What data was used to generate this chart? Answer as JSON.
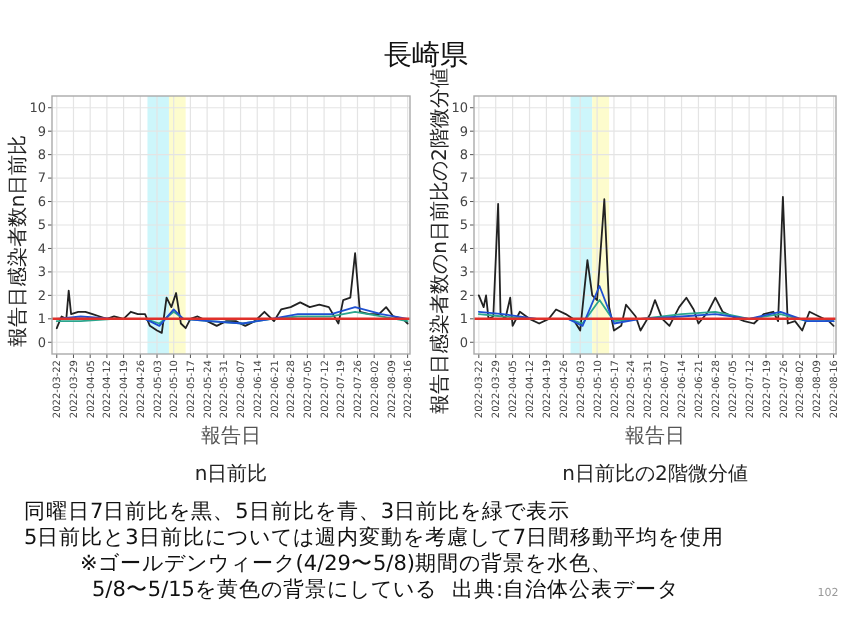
{
  "chart_data": [
    {
      "type": "line",
      "ylabel": "報告日感染者数n日前比",
      "xlabel": "報告日",
      "subtitle": "n日前比",
      "grid": true,
      "xlim": [
        "2022-03-20",
        "2022-08-17"
      ],
      "ylim": [
        -0.5,
        10.5
      ],
      "yticks": [
        0,
        1,
        2,
        3,
        4,
        5,
        6,
        7,
        8,
        9,
        10
      ],
      "xticks": [
        "2022-03-22",
        "2022-03-29",
        "2022-04-05",
        "2022-04-12",
        "2022-04-19",
        "2022-04-26",
        "2022-05-03",
        "2022-05-10",
        "2022-05-17",
        "2022-05-24",
        "2022-05-31",
        "2022-06-07",
        "2022-06-14",
        "2022-06-21",
        "2022-06-28",
        "2022-07-05",
        "2022-07-12",
        "2022-07-19",
        "2022-07-26",
        "2022-08-02",
        "2022-08-09",
        "2022-08-16"
      ],
      "bands": [
        {
          "axis": "x",
          "from": "2022-04-29",
          "to": "2022-05-08",
          "color": "#cdf6fb"
        },
        {
          "axis": "x",
          "from": "2022-05-08",
          "to": "2022-05-15",
          "color": "#fdfccd"
        }
      ],
      "ref_lines": [
        {
          "axis": "y",
          "value": 1,
          "color": "#e0302a"
        }
      ],
      "series": [
        {
          "color": "#222222",
          "x": [
            "2022-03-22",
            "2022-03-24",
            "2022-03-26",
            "2022-03-27",
            "2022-03-28",
            "2022-03-31",
            "2022-04-03",
            "2022-04-06",
            "2022-04-09",
            "2022-04-12",
            "2022-04-15",
            "2022-04-19",
            "2022-04-22",
            "2022-04-25",
            "2022-04-28",
            "2022-04-30",
            "2022-05-03",
            "2022-05-05",
            "2022-05-07",
            "2022-05-09",
            "2022-05-11",
            "2022-05-13",
            "2022-05-15",
            "2022-05-17",
            "2022-05-20",
            "2022-05-24",
            "2022-05-28",
            "2022-06-01",
            "2022-06-05",
            "2022-06-09",
            "2022-06-13",
            "2022-06-17",
            "2022-06-21",
            "2022-06-24",
            "2022-06-28",
            "2022-07-02",
            "2022-07-06",
            "2022-07-10",
            "2022-07-14",
            "2022-07-18",
            "2022-07-20",
            "2022-07-23",
            "2022-07-25",
            "2022-07-27",
            "2022-07-31",
            "2022-08-04",
            "2022-08-07",
            "2022-08-10",
            "2022-08-14",
            "2022-08-16"
          ],
          "values": [
            0.6,
            1.1,
            1.0,
            2.2,
            1.2,
            1.3,
            1.3,
            1.2,
            1.1,
            1.0,
            1.1,
            1.0,
            1.3,
            1.2,
            1.2,
            0.7,
            0.5,
            0.4,
            1.9,
            1.5,
            2.1,
            0.8,
            0.6,
            1.0,
            1.1,
            0.9,
            0.7,
            0.9,
            0.9,
            0.7,
            0.9,
            1.3,
            0.9,
            1.4,
            1.5,
            1.7,
            1.5,
            1.6,
            1.5,
            0.8,
            1.8,
            1.9,
            3.8,
            1.3,
            1.2,
            1.2,
            1.5,
            1.1,
            1.0,
            0.8
          ]
        },
        {
          "color": "#2ca58d",
          "x": [
            "2022-03-22",
            "2022-04-01",
            "2022-04-15",
            "2022-04-28",
            "2022-05-04",
            "2022-05-10",
            "2022-05-14",
            "2022-05-25",
            "2022-06-08",
            "2022-06-20",
            "2022-07-01",
            "2022-07-15",
            "2022-07-25",
            "2022-08-05",
            "2022-08-16"
          ],
          "values": [
            0.9,
            0.9,
            1.0,
            1.0,
            0.8,
            1.3,
            1.0,
            0.9,
            0.8,
            1.0,
            1.1,
            1.1,
            1.3,
            1.1,
            0.9
          ]
        },
        {
          "color": "#1f4fd1",
          "x": [
            "2022-03-22",
            "2022-04-01",
            "2022-04-15",
            "2022-04-28",
            "2022-05-04",
            "2022-05-10",
            "2022-05-14",
            "2022-05-25",
            "2022-06-08",
            "2022-06-20",
            "2022-07-01",
            "2022-07-15",
            "2022-07-25",
            "2022-08-05",
            "2022-08-16"
          ],
          "values": [
            1.0,
            1.1,
            1.0,
            1.0,
            0.7,
            1.4,
            1.0,
            0.9,
            0.8,
            1.0,
            1.2,
            1.2,
            1.5,
            1.2,
            1.0
          ]
        }
      ]
    },
    {
      "type": "line",
      "ylabel": "報告日感染者数のn日前比の2階微分値",
      "xlabel": "報告日",
      "subtitle": "n日前比の2階微分値",
      "grid": true,
      "xlim": [
        "2022-03-20",
        "2022-08-17"
      ],
      "ylim": [
        -0.5,
        10.5
      ],
      "yticks": [
        0,
        1,
        2,
        3,
        4,
        5,
        6,
        7,
        8,
        9,
        10
      ],
      "xticks": [
        "2022-03-22",
        "2022-03-29",
        "2022-04-05",
        "2022-04-12",
        "2022-04-19",
        "2022-04-26",
        "2022-05-03",
        "2022-05-10",
        "2022-05-17",
        "2022-05-24",
        "2022-05-31",
        "2022-06-07",
        "2022-06-14",
        "2022-06-21",
        "2022-06-28",
        "2022-07-05",
        "2022-07-12",
        "2022-07-19",
        "2022-07-26",
        "2022-08-02",
        "2022-08-09",
        "2022-08-16"
      ],
      "bands": [
        {
          "axis": "x",
          "from": "2022-04-29",
          "to": "2022-05-08",
          "color": "#cdf6fb"
        },
        {
          "axis": "x",
          "from": "2022-05-08",
          "to": "2022-05-15",
          "color": "#fdfccd"
        }
      ],
      "ref_lines": [
        {
          "axis": "y",
          "value": 1,
          "color": "#e0302a"
        }
      ],
      "series": [
        {
          "color": "#222222",
          "x": [
            "2022-03-22",
            "2022-03-24",
            "2022-03-25",
            "2022-03-26",
            "2022-03-28",
            "2022-03-30",
            "2022-03-31",
            "2022-04-02",
            "2022-04-04",
            "2022-04-05",
            "2022-04-08",
            "2022-04-12",
            "2022-04-16",
            "2022-04-20",
            "2022-04-23",
            "2022-04-27",
            "2022-04-30",
            "2022-05-03",
            "2022-05-06",
            "2022-05-08",
            "2022-05-10",
            "2022-05-13",
            "2022-05-15",
            "2022-05-17",
            "2022-05-20",
            "2022-05-22",
            "2022-05-26",
            "2022-05-28",
            "2022-06-01",
            "2022-06-03",
            "2022-06-06",
            "2022-06-09",
            "2022-06-13",
            "2022-06-16",
            "2022-06-19",
            "2022-06-21",
            "2022-06-25",
            "2022-06-28",
            "2022-07-01",
            "2022-07-05",
            "2022-07-10",
            "2022-07-14",
            "2022-07-18",
            "2022-07-22",
            "2022-07-24",
            "2022-07-26",
            "2022-07-28",
            "2022-07-31",
            "2022-08-03",
            "2022-08-06",
            "2022-08-10",
            "2022-08-14",
            "2022-08-16"
          ],
          "values": [
            2.0,
            1.5,
            2.0,
            1.0,
            1.1,
            5.9,
            1.2,
            1.0,
            1.9,
            0.7,
            1.3,
            1.0,
            0.8,
            1.0,
            1.4,
            1.2,
            1.0,
            0.5,
            3.5,
            2.0,
            1.8,
            6.1,
            1.5,
            0.5,
            0.7,
            1.6,
            1.1,
            0.5,
            1.2,
            1.8,
            1.0,
            0.7,
            1.5,
            1.9,
            1.4,
            0.8,
            1.3,
            1.9,
            1.3,
            1.1,
            0.9,
            0.8,
            1.2,
            1.3,
            0.9,
            6.2,
            0.8,
            0.9,
            0.5,
            1.3,
            1.1,
            0.9,
            0.7
          ]
        },
        {
          "color": "#2ca58d",
          "x": [
            "2022-03-22",
            "2022-04-01",
            "2022-04-15",
            "2022-04-28",
            "2022-05-04",
            "2022-05-11",
            "2022-05-17",
            "2022-05-28",
            "2022-06-14",
            "2022-06-28",
            "2022-07-12",
            "2022-07-25",
            "2022-08-05",
            "2022-08-16"
          ],
          "values": [
            1.2,
            1.1,
            1.0,
            1.0,
            0.8,
            1.8,
            0.9,
            1.0,
            1.2,
            1.3,
            1.0,
            1.2,
            0.9,
            0.9
          ]
        },
        {
          "color": "#1f4fd1",
          "x": [
            "2022-03-22",
            "2022-04-01",
            "2022-04-15",
            "2022-04-28",
            "2022-05-04",
            "2022-05-11",
            "2022-05-17",
            "2022-05-28",
            "2022-06-14",
            "2022-06-28",
            "2022-07-12",
            "2022-07-25",
            "2022-08-05",
            "2022-08-16"
          ],
          "values": [
            1.3,
            1.2,
            1.0,
            1.0,
            0.7,
            2.4,
            0.8,
            1.0,
            1.1,
            1.2,
            1.0,
            1.3,
            0.9,
            0.9
          ]
        }
      ]
    },
    {
      "type": "other",
      "title": "長崎県",
      "annotations": [
        "同曜日7日前比を黒、5日前比を青、3日前比を緑で表示",
        "5日前比と3日前比については週内変動を考慮して7日間移動平均を使用",
        "※ゴールデンウィーク(4/29〜5/8)期間の背景を水色、",
        "5/8〜5/15を黄色の背景にしている",
        "出典:自治体公表データ",
        "102"
      ]
    }
  ]
}
